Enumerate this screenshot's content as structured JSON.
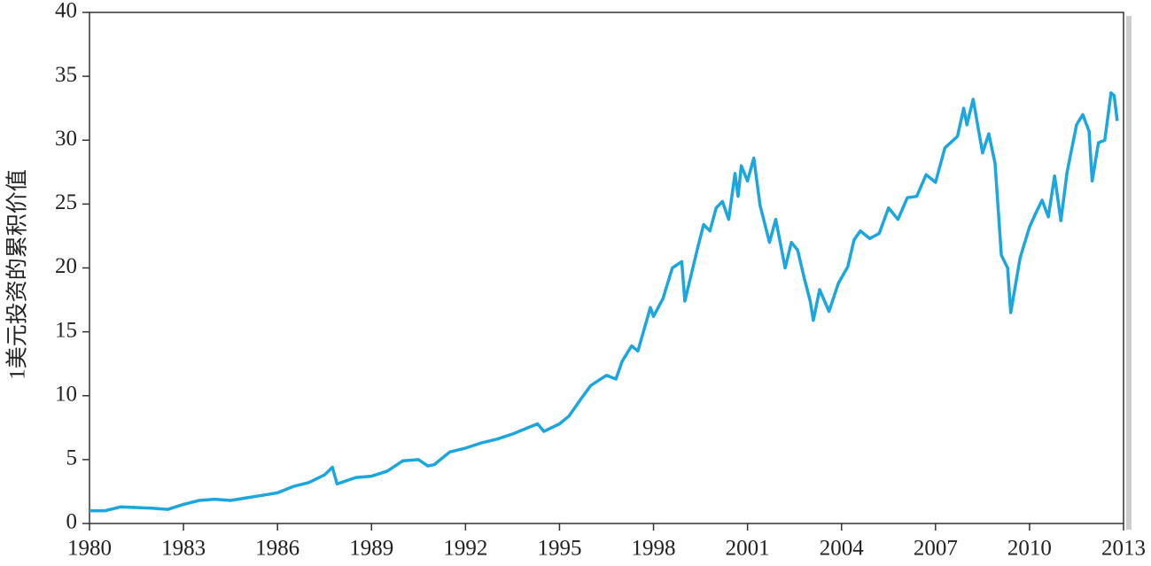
{
  "chart_data": {
    "type": "line",
    "y_label": "1美元投资的累积价值",
    "xlim": [
      1980,
      2013
    ],
    "xticks": [
      1980,
      1983,
      1986,
      1989,
      1992,
      1995,
      1998,
      2001,
      2004,
      2007,
      2010,
      2013
    ],
    "ylim": [
      0,
      40
    ],
    "yticks": [
      0,
      5,
      10,
      15,
      20,
      25,
      30,
      35,
      40
    ],
    "series": [
      {
        "color": "#1ba6df",
        "x": [
          1980,
          1980.5,
          1981,
          1982,
          1982.5,
          1983,
          1983.5,
          1984,
          1984.5,
          1985,
          1985.5,
          1986,
          1986.5,
          1987,
          1987.5,
          1987.75,
          1987.9,
          1988.5,
          1989,
          1989.5,
          1990,
          1990.5,
          1990.8,
          1991,
          1991.5,
          1992,
          1992.5,
          1993,
          1993.5,
          1994,
          1994.3,
          1994.5,
          1995,
          1995.3,
          1995.7,
          1996,
          1996.5,
          1996.8,
          1997,
          1997.3,
          1997.5,
          1997.9,
          1998,
          1998.3,
          1998.6,
          1998.9,
          1999,
          1999.4,
          1999.6,
          1999.8,
          2000,
          2000.2,
          2000.4,
          2000.6,
          2000.7,
          2000.8,
          2001,
          2001.2,
          2001.4,
          2001.7,
          2001.9,
          2002.2,
          2002.4,
          2002.6,
          2002.8,
          2003,
          2003.1,
          2003.3,
          2003.6,
          2003.9,
          2004.2,
          2004.4,
          2004.6,
          2004.9,
          2005.2,
          2005.5,
          2005.8,
          2006.1,
          2006.4,
          2006.7,
          2007,
          2007.3,
          2007.7,
          2007.9,
          2008,
          2008.2,
          2008.5,
          2008.7,
          2008.9,
          2009.1,
          2009.3,
          2009.4,
          2009.7,
          2010,
          2010.2,
          2010.4,
          2010.6,
          2010.8,
          2011,
          2011.2,
          2011.5,
          2011.7,
          2011.9,
          2012,
          2012.2,
          2012.4,
          2012.6,
          2012.7,
          2012.8
        ],
        "values": [
          1.0,
          1.0,
          1.3,
          1.2,
          1.1,
          1.5,
          1.8,
          1.9,
          1.8,
          2.0,
          2.2,
          2.4,
          2.9,
          3.2,
          3.8,
          4.4,
          3.1,
          3.6,
          3.7,
          4.1,
          4.9,
          5.0,
          4.5,
          4.6,
          5.6,
          5.9,
          6.3,
          6.6,
          7.0,
          7.5,
          7.8,
          7.2,
          7.8,
          8.4,
          9.8,
          10.8,
          11.6,
          11.3,
          12.7,
          13.9,
          13.5,
          16.9,
          16.2,
          17.6,
          20.0,
          20.5,
          17.4,
          21.5,
          23.4,
          22.9,
          24.7,
          25.2,
          23.8,
          27.4,
          25.6,
          28.0,
          26.8,
          28.6,
          24.9,
          22.0,
          23.8,
          20.0,
          22.0,
          21.4,
          19.3,
          17.4,
          15.9,
          18.3,
          16.6,
          18.8,
          20.1,
          22.2,
          22.9,
          22.3,
          22.7,
          24.7,
          23.8,
          25.5,
          25.6,
          27.3,
          26.7,
          29.4,
          30.3,
          32.5,
          31.2,
          33.2,
          29.0,
          30.5,
          28.2,
          21.0,
          20.0,
          16.5,
          20.8,
          23.2,
          24.3,
          25.3,
          24.0,
          27.2,
          23.7,
          27.5,
          31.2,
          32.0,
          30.7,
          26.8,
          29.8,
          30.0,
          33.7,
          33.5,
          31.5
        ]
      }
    ]
  }
}
